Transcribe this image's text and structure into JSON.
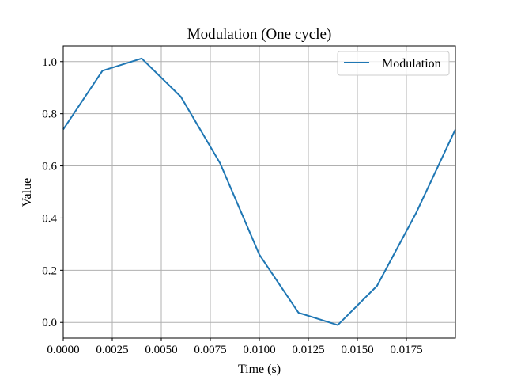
{
  "chart_data": {
    "type": "line",
    "title": "Modulation (One cycle)",
    "xlabel": "Time (s)",
    "ylabel": "Value",
    "xlim": [
      0.0,
      0.02
    ],
    "ylim": [
      -0.06,
      1.06
    ],
    "x_ticks": [
      0.0,
      0.0025,
      0.005,
      0.0075,
      0.01,
      0.0125,
      0.015,
      0.0175
    ],
    "x_tick_labels": [
      "0.0000",
      "0.0025",
      "0.0050",
      "0.0075",
      "0.0100",
      "0.0125",
      "0.0150",
      "0.0175"
    ],
    "y_ticks": [
      0.0,
      0.2,
      0.4,
      0.6,
      0.8,
      1.0
    ],
    "y_tick_labels": [
      "0.0",
      "0.2",
      "0.4",
      "0.6",
      "0.8",
      "1.0"
    ],
    "grid": true,
    "legend_position": "top-right",
    "series": [
      {
        "name": "Modulation",
        "color": "#1f77b4",
        "x": [
          0.0,
          0.002,
          0.004,
          0.006,
          0.008,
          0.01,
          0.012,
          0.014,
          0.016,
          0.018,
          0.02
        ],
        "y": [
          0.74,
          0.965,
          1.012,
          0.865,
          0.61,
          0.26,
          0.037,
          -0.01,
          0.14,
          0.42,
          0.74
        ]
      }
    ]
  }
}
